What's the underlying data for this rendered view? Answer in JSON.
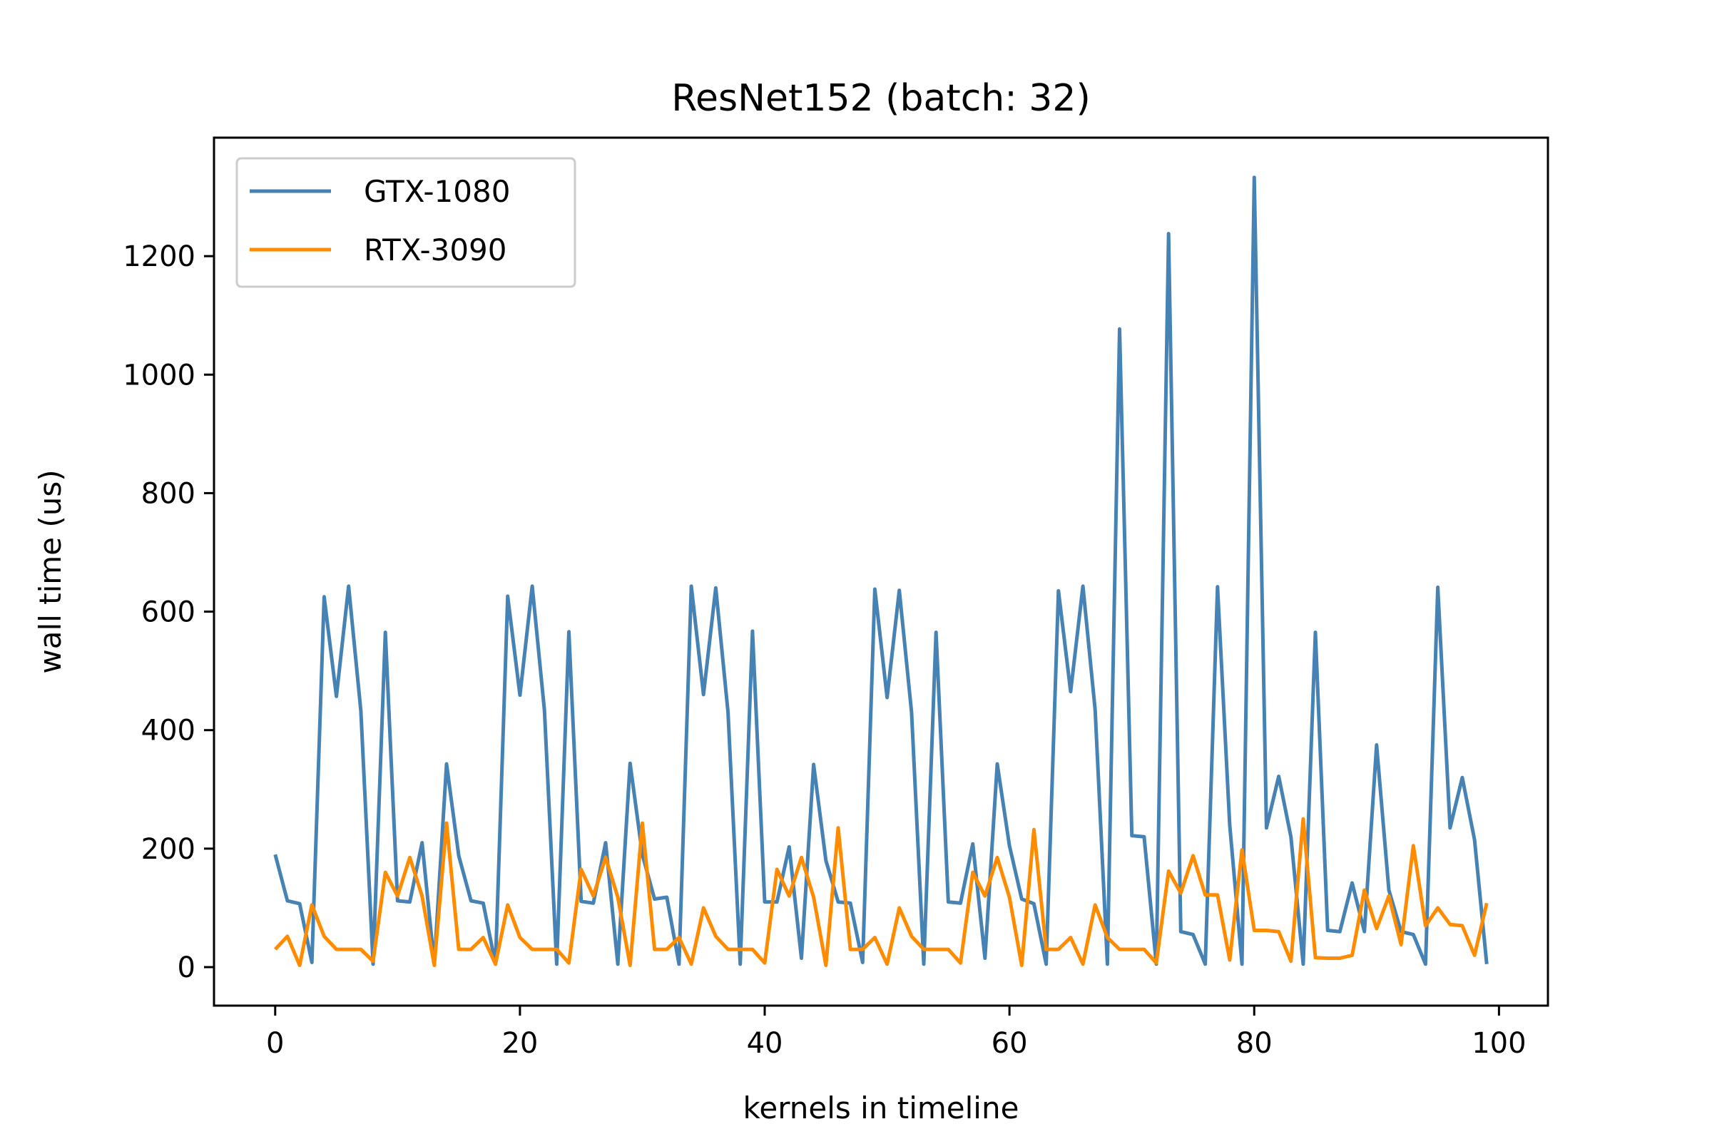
{
  "chart_data": {
    "type": "line",
    "title": "ResNet152 (batch: 32)",
    "xlabel": "kernels in timeline",
    "ylabel": "wall time (us)",
    "xlim": [
      -5,
      104
    ],
    "ylim": [
      -65,
      1400
    ],
    "xticks": [
      0,
      20,
      40,
      60,
      80,
      100
    ],
    "yticks": [
      0,
      200,
      400,
      600,
      800,
      1000,
      1200
    ],
    "grid": false,
    "legend_position": "top-left",
    "x": [
      0,
      1,
      2,
      3,
      4,
      5,
      6,
      7,
      8,
      9,
      10,
      11,
      12,
      13,
      14,
      15,
      16,
      17,
      18,
      19,
      20,
      21,
      22,
      23,
      24,
      25,
      26,
      27,
      28,
      29,
      30,
      31,
      32,
      33,
      34,
      35,
      36,
      37,
      38,
      39,
      40,
      41,
      42,
      43,
      44,
      45,
      46,
      47,
      48,
      49,
      50,
      51,
      52,
      53,
      54,
      55,
      56,
      57,
      58,
      59,
      60,
      61,
      62,
      63,
      64,
      65,
      66,
      67,
      68,
      69,
      70,
      71,
      72,
      73,
      74,
      75,
      76,
      77,
      78,
      79,
      80,
      81,
      82,
      83,
      84,
      85,
      86,
      87,
      88,
      89,
      90,
      91,
      92,
      93,
      94,
      95,
      96,
      97,
      98,
      99
    ],
    "series": [
      {
        "name": "GTX-1080",
        "color": "#4682b4",
        "values": [
          190,
          112,
          107,
          8,
          625,
          457,
          643,
          432,
          5,
          565,
          112,
          110,
          210,
          5,
          343,
          188,
          112,
          108,
          5,
          626,
          459,
          643,
          434,
          5,
          566,
          111,
          108,
          210,
          5,
          344,
          190,
          115,
          118,
          5,
          643,
          460,
          640,
          430,
          5,
          567,
          110,
          110,
          203,
          15,
          342,
          180,
          110,
          108,
          8,
          638,
          455,
          636,
          430,
          5,
          565,
          110,
          108,
          208,
          15,
          343,
          205,
          115,
          107,
          5,
          635,
          465,
          643,
          435,
          5,
          1077,
          222,
          220,
          5,
          1238,
          60,
          55,
          5,
          642,
          240,
          5,
          1333,
          235,
          322,
          220,
          5,
          565,
          62,
          60,
          142,
          60,
          375,
          130,
          60,
          55,
          5,
          641,
          235,
          320,
          215,
          5
        ]
      },
      {
        "name": "RTX-3090",
        "color": "#ff8c00",
        "values": [
          30,
          52,
          3,
          105,
          52,
          30,
          30,
          30,
          10,
          160,
          120,
          185,
          120,
          3,
          243,
          30,
          30,
          50,
          5,
          105,
          50,
          30,
          30,
          30,
          7,
          165,
          120,
          185,
          118,
          3,
          243,
          30,
          30,
          50,
          5,
          100,
          52,
          30,
          30,
          30,
          7,
          165,
          120,
          185,
          118,
          3,
          235,
          30,
          30,
          50,
          5,
          100,
          52,
          30,
          30,
          30,
          7,
          160,
          120,
          185,
          118,
          3,
          232,
          30,
          30,
          50,
          5,
          105,
          50,
          30,
          30,
          30,
          7,
          162,
          125,
          188,
          122,
          122,
          12,
          198,
          62,
          62,
          60,
          10,
          250,
          16,
          15,
          15,
          20,
          130,
          65,
          120,
          38,
          205,
          70,
          100,
          72,
          70,
          20,
          108
        ]
      }
    ]
  }
}
